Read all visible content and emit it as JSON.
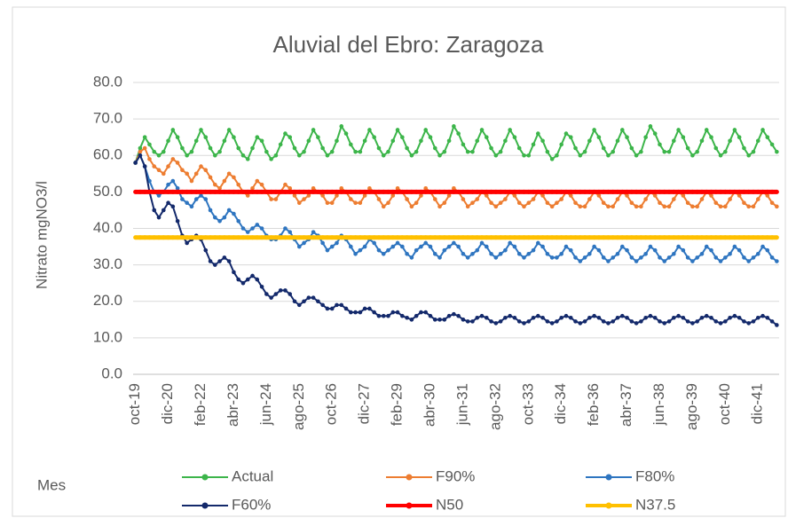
{
  "chart_data": {
    "type": "line",
    "title": "Aluvial del Ebro: Zaragoza",
    "y_label": "Nitrato mgNO3/l",
    "x_label": "Mes",
    "ylim": [
      0,
      80
    ],
    "yticks": [
      {
        "value": 0,
        "label": "0.0"
      },
      {
        "value": 10,
        "label": "10.0"
      },
      {
        "value": 20,
        "label": "20.0"
      },
      {
        "value": 30,
        "label": "30.0"
      },
      {
        "value": 40,
        "label": "40.0"
      },
      {
        "value": 50,
        "label": "50.0"
      },
      {
        "value": 60,
        "label": "60.0"
      },
      {
        "value": 70,
        "label": "70.0"
      },
      {
        "value": 80,
        "label": "80.0"
      }
    ],
    "grid": true,
    "categories": [
      "oct-19",
      null,
      null,
      null,
      null,
      null,
      null,
      "dic-20",
      null,
      null,
      null,
      null,
      null,
      null,
      "feb-22",
      null,
      null,
      null,
      null,
      null,
      null,
      "abr-23",
      null,
      null,
      null,
      null,
      null,
      null,
      "jun-24",
      null,
      null,
      null,
      null,
      null,
      null,
      "ago-25",
      null,
      null,
      null,
      null,
      null,
      null,
      "oct-26",
      null,
      null,
      null,
      null,
      null,
      null,
      "dic-27",
      null,
      null,
      null,
      null,
      null,
      null,
      "feb-29",
      null,
      null,
      null,
      null,
      null,
      null,
      "abr-30",
      null,
      null,
      null,
      null,
      null,
      null,
      "jun-31",
      null,
      null,
      null,
      null,
      null,
      null,
      "ago-32",
      null,
      null,
      null,
      null,
      null,
      null,
      "oct-33",
      null,
      null,
      null,
      null,
      null,
      null,
      "dic-34",
      null,
      null,
      null,
      null,
      null,
      null,
      "feb-36",
      null,
      null,
      null,
      null,
      null,
      null,
      "abr-37",
      null,
      null,
      null,
      null,
      null,
      null,
      "jun-38",
      null,
      null,
      null,
      null,
      null,
      null,
      "ago-39",
      null,
      null,
      null,
      null,
      null,
      null,
      "oct-40",
      null,
      null,
      null,
      null,
      null,
      null,
      "dic-41",
      null,
      null,
      null,
      null
    ],
    "series": [
      {
        "name": "Actual",
        "color": "#3cb54a",
        "values": [
          58,
          62,
          65,
          63,
          61,
          60,
          61,
          64,
          67,
          65,
          62,
          60,
          61,
          64,
          67,
          65,
          62,
          60,
          61,
          64,
          67,
          65,
          62,
          60,
          59,
          62,
          65,
          64,
          61,
          59,
          60,
          63,
          66,
          65,
          62,
          60,
          61,
          64,
          67,
          65,
          62,
          60,
          61,
          64,
          68,
          66,
          63,
          61,
          61,
          64,
          67,
          65,
          62,
          60,
          61,
          64,
          67,
          65,
          62,
          60,
          61,
          64,
          67,
          65,
          62,
          60,
          61,
          64,
          68,
          66,
          63,
          61,
          61,
          64,
          67,
          65,
          62,
          60,
          61,
          64,
          67,
          65,
          62,
          60,
          60,
          63,
          66,
          64,
          61,
          59,
          60,
          63,
          66,
          65,
          62,
          60,
          61,
          64,
          67,
          65,
          62,
          60,
          61,
          64,
          67,
          65,
          62,
          60,
          61,
          65,
          68,
          66,
          63,
          61,
          61,
          64,
          67,
          65,
          62,
          60,
          61,
          64,
          67,
          65,
          62,
          60,
          61,
          64,
          67,
          65,
          62,
          60,
          61,
          64,
          67,
          65,
          63,
          61
        ]
      },
      {
        "name": "F90%",
        "color": "#ed7d31",
        "values": [
          58,
          61,
          62,
          59,
          57,
          56,
          55,
          57,
          59,
          58,
          56,
          55,
          53,
          55,
          57,
          56,
          54,
          52,
          51,
          53,
          55,
          54,
          52,
          50,
          49,
          51,
          53,
          52,
          50,
          48,
          48,
          50,
          52,
          51,
          49,
          47,
          48,
          49,
          51,
          50,
          49,
          47,
          47,
          49,
          51,
          50,
          48,
          47,
          47,
          49,
          51,
          50,
          48,
          46,
          47,
          49,
          51,
          50,
          48,
          46,
          47,
          49,
          51,
          50,
          48,
          46,
          47,
          49,
          51,
          50,
          48,
          46,
          47,
          48,
          50,
          49,
          47,
          46,
          47,
          48,
          50,
          49,
          47,
          46,
          47,
          48,
          50,
          49,
          47,
          46,
          47,
          48,
          50,
          49,
          47,
          46,
          46,
          48,
          50,
          49,
          47,
          46,
          46,
          48,
          50,
          49,
          47,
          46,
          46,
          48,
          50,
          49,
          47,
          46,
          46,
          48,
          50,
          49,
          47,
          46,
          46,
          48,
          50,
          49,
          47,
          46,
          46,
          48,
          50,
          49,
          47,
          46,
          46,
          48,
          50,
          49,
          47,
          46
        ]
      },
      {
        "name": "F80%",
        "color": "#2e75c0",
        "values": [
          58,
          60,
          57,
          53,
          50,
          49,
          50,
          52,
          53,
          51,
          48,
          47,
          46,
          48,
          49,
          48,
          45,
          43,
          42,
          43,
          45,
          44,
          42,
          40,
          39,
          40,
          41,
          40,
          38,
          37,
          37,
          38,
          40,
          39,
          37,
          35,
          36,
          37,
          39,
          38,
          36,
          34,
          35,
          36,
          38,
          37,
          35,
          33,
          34,
          35,
          37,
          36,
          34,
          33,
          34,
          35,
          36,
          35,
          33,
          32,
          34,
          35,
          36,
          35,
          33,
          32,
          34,
          35,
          36,
          35,
          33,
          32,
          33,
          34,
          36,
          35,
          33,
          32,
          33,
          34,
          36,
          35,
          33,
          32,
          33,
          34,
          36,
          35,
          33,
          32,
          32,
          33,
          35,
          34,
          32,
          31,
          32,
          33,
          35,
          34,
          32,
          31,
          32,
          33,
          35,
          34,
          32,
          31,
          32,
          33,
          35,
          34,
          32,
          31,
          32,
          33,
          35,
          34,
          32,
          31,
          32,
          33,
          35,
          34,
          32,
          31,
          32,
          33,
          35,
          34,
          32,
          31,
          32,
          33,
          35,
          34,
          32,
          31
        ]
      },
      {
        "name": "F60%",
        "color": "#13296b",
        "values": [
          58,
          60,
          57,
          50,
          45,
          43,
          45,
          47,
          46,
          42,
          38,
          36,
          37,
          38,
          37,
          34,
          31,
          30,
          31,
          32,
          31,
          28,
          26,
          25,
          26,
          27,
          26,
          24,
          22,
          21,
          22,
          23,
          23,
          22,
          20,
          19,
          20,
          21,
          21,
          20,
          19,
          18,
          18,
          19,
          19,
          18,
          17,
          17,
          17,
          18,
          18,
          17,
          16,
          16,
          16,
          17,
          17,
          16,
          15.5,
          15,
          16,
          17,
          17,
          16,
          15,
          15,
          15,
          16,
          16.5,
          16,
          15,
          14.5,
          14.5,
          15.5,
          16,
          15.5,
          14.5,
          14,
          14.5,
          15.5,
          16,
          15.5,
          14.5,
          14,
          14.5,
          15.5,
          16,
          15.5,
          14.5,
          14,
          14.5,
          15.5,
          16,
          15.5,
          14.5,
          14,
          14.5,
          15.5,
          16,
          15.5,
          14.5,
          14,
          14.5,
          15.5,
          16,
          15.5,
          14.5,
          14,
          14.5,
          15.5,
          16,
          15.5,
          14.5,
          14,
          14.5,
          15.5,
          16,
          15.5,
          14.5,
          14,
          14.5,
          15.5,
          16,
          15.5,
          14.5,
          14,
          14.5,
          15.5,
          16,
          15.5,
          14.5,
          14,
          14.5,
          15.5,
          16,
          15.5,
          14.5,
          13.5
        ]
      },
      {
        "name": "N50",
        "color": "#ff0000",
        "values": [
          50,
          50,
          50,
          50,
          50,
          50,
          50,
          50,
          50,
          50,
          50,
          50,
          50,
          50,
          50,
          50,
          50,
          50,
          50,
          50,
          50,
          50,
          50,
          50,
          50,
          50,
          50,
          50,
          50,
          50,
          50,
          50,
          50,
          50,
          50,
          50,
          50,
          50,
          50,
          50,
          50,
          50,
          50,
          50,
          50,
          50,
          50,
          50,
          50,
          50,
          50,
          50,
          50,
          50,
          50,
          50,
          50,
          50,
          50,
          50,
          50,
          50,
          50,
          50,
          50,
          50,
          50,
          50,
          50,
          50,
          50,
          50,
          50,
          50,
          50,
          50,
          50,
          50,
          50,
          50,
          50,
          50,
          50,
          50,
          50,
          50,
          50,
          50,
          50,
          50,
          50,
          50,
          50,
          50,
          50,
          50,
          50,
          50,
          50,
          50,
          50,
          50,
          50,
          50,
          50,
          50,
          50,
          50,
          50,
          50,
          50,
          50,
          50,
          50,
          50,
          50,
          50,
          50,
          50,
          50,
          50,
          50,
          50,
          50,
          50,
          50,
          50,
          50,
          50,
          50,
          50,
          50,
          50,
          50,
          50,
          50,
          50,
          50
        ]
      },
      {
        "name": "N37.5",
        "color": "#ffc000",
        "values": [
          37.5,
          37.5,
          37.5,
          37.5,
          37.5,
          37.5,
          37.5,
          37.5,
          37.5,
          37.5,
          37.5,
          37.5,
          37.5,
          37.5,
          37.5,
          37.5,
          37.5,
          37.5,
          37.5,
          37.5,
          37.5,
          37.5,
          37.5,
          37.5,
          37.5,
          37.5,
          37.5,
          37.5,
          37.5,
          37.5,
          37.5,
          37.5,
          37.5,
          37.5,
          37.5,
          37.5,
          37.5,
          37.5,
          37.5,
          37.5,
          37.5,
          37.5,
          37.5,
          37.5,
          37.5,
          37.5,
          37.5,
          37.5,
          37.5,
          37.5,
          37.5,
          37.5,
          37.5,
          37.5,
          37.5,
          37.5,
          37.5,
          37.5,
          37.5,
          37.5,
          37.5,
          37.5,
          37.5,
          37.5,
          37.5,
          37.5,
          37.5,
          37.5,
          37.5,
          37.5,
          37.5,
          37.5,
          37.5,
          37.5,
          37.5,
          37.5,
          37.5,
          37.5,
          37.5,
          37.5,
          37.5,
          37.5,
          37.5,
          37.5,
          37.5,
          37.5,
          37.5,
          37.5,
          37.5,
          37.5,
          37.5,
          37.5,
          37.5,
          37.5,
          37.5,
          37.5,
          37.5,
          37.5,
          37.5,
          37.5,
          37.5,
          37.5,
          37.5,
          37.5,
          37.5,
          37.5,
          37.5,
          37.5,
          37.5,
          37.5,
          37.5,
          37.5,
          37.5,
          37.5,
          37.5,
          37.5,
          37.5,
          37.5,
          37.5,
          37.5,
          37.5,
          37.5,
          37.5,
          37.5,
          37.5,
          37.5,
          37.5,
          37.5,
          37.5,
          37.5,
          37.5,
          37.5,
          37.5,
          37.5,
          37.5,
          37.5,
          37.5,
          37.5
        ]
      }
    ]
  }
}
